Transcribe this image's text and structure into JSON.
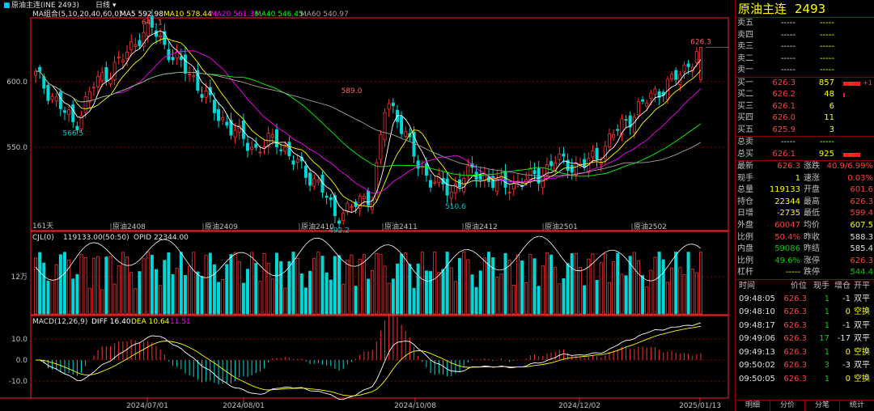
{
  "header": {
    "title_bullet": "■",
    "instrument": "原油主连(INE 2493)",
    "period": "日线",
    "period_arrow": "▾"
  },
  "ma_legend": {
    "label": "MA组合(5,10,20,40,60,0)",
    "ma5": "MA5 592.98",
    "ma10": "MA10 578.44",
    "ma20": "MA20 561.38",
    "ma40": "MA40 546.45",
    "ma60": "MA60 540.97"
  },
  "colors": {
    "up": "#ff3030",
    "down": "#00d8d8",
    "ma5": "#ffffff",
    "ma10": "#ffff00",
    "ma20": "#ff00ff",
    "ma40": "#00ff00",
    "ma60": "#a0a0a0",
    "grid": "#8b0000",
    "axis": "#ff2020"
  },
  "price_axis": {
    "labels": [
      "600.0",
      "550.0"
    ],
    "values": [
      600,
      550
    ]
  },
  "price_annotations": [
    "641.1",
    "589.0",
    "566.5",
    "510.6",
    "492.2",
    "626.3"
  ],
  "bar_count_label": "161天",
  "contract_markers": [
    "原油2408",
    "原油2409",
    "原油2410",
    "原油2411",
    "原油2412",
    "原油2501",
    "原油2502"
  ],
  "cjl": {
    "label": "CJL(0)",
    "values": "119133.00(50:50)",
    "opid": "OPID 22344.00",
    "axis_label": "12万"
  },
  "macd": {
    "label": "MACD(12,26,9)",
    "diff": "DIFF 16.40",
    "dea": "DEA 10.64",
    "macd": "11.51",
    "axis_labels": [
      "10.0",
      "0.0",
      "-10.0"
    ],
    "axis_values": [
      10,
      0,
      -10
    ]
  },
  "date_axis": [
    "2024/07/01",
    "2024/08/01",
    "2024/10/08",
    "2024/12/02",
    "2025/01/13"
  ],
  "panel": {
    "title_name": "原油主连",
    "title_code": "2493",
    "asks": [
      {
        "label": "卖五",
        "price": "-----",
        "vol": "-----"
      },
      {
        "label": "卖四",
        "price": "-----",
        "vol": "-----"
      },
      {
        "label": "卖三",
        "price": "-----",
        "vol": "-----"
      },
      {
        "label": "卖二",
        "price": "-----",
        "vol": "-----"
      },
      {
        "label": "卖一",
        "price": "-----",
        "vol": "-----"
      }
    ],
    "bids": [
      {
        "label": "买一",
        "price": "626.3",
        "vol": "857",
        "bar": 0.75,
        "delta": "+1"
      },
      {
        "label": "买二",
        "price": "626.2",
        "vol": "48",
        "bar": 0.05,
        "delta": ""
      },
      {
        "label": "买三",
        "price": "626.1",
        "vol": "6",
        "bar": 0,
        "delta": ""
      },
      {
        "label": "买四",
        "price": "626.0",
        "vol": "11",
        "bar": 0,
        "delta": ""
      },
      {
        "label": "买五",
        "price": "625.9",
        "vol": "3",
        "bar": 0,
        "delta": ""
      }
    ],
    "total_ask": {
      "label": "总卖",
      "price": "-----",
      "vol": "-----"
    },
    "total_bid": {
      "label": "总买",
      "price": "626.1",
      "vol": "925",
      "bar": 0.75
    },
    "quote": [
      {
        "l1": "最新",
        "v1": "626.3",
        "c1": "red",
        "l2": "涨跌",
        "v2": "40.9/6.99%",
        "c2": "red"
      },
      {
        "l1": "现手",
        "v1": "1",
        "c1": "yel",
        "l2": "速涨",
        "v2": "0.03%",
        "c2": "red"
      },
      {
        "l1": "总量",
        "v1": "119133",
        "c1": "yel",
        "l2": "开盘",
        "v2": "601.6",
        "c2": "red"
      },
      {
        "l1": "持仓",
        "v1": "22344",
        "c1": "yel",
        "l2": "最高",
        "v2": "626.3",
        "c2": "red"
      },
      {
        "l1": "日增",
        "v1": "-2735",
        "c1": "yel",
        "l2": "最低",
        "v2": "599.4",
        "c2": "red"
      },
      {
        "l1": "外盘",
        "v1": "60047",
        "c1": "red",
        "l2": "均价",
        "v2": "607.5",
        "c2": "yel"
      },
      {
        "l1": "比例",
        "v1": "50.4%",
        "c1": "red",
        "l2": "昨收",
        "v2": "588.3",
        "c2": "wht"
      },
      {
        "l1": "内盘",
        "v1": "59086",
        "c1": "grn",
        "l2": "昨结",
        "v2": "585.4",
        "c2": "wht"
      },
      {
        "l1": "比例",
        "v1": "49.6%",
        "c1": "grn",
        "l2": "涨停",
        "v2": "626.3",
        "c2": "red"
      },
      {
        "l1": "杠杆",
        "v1": "-----",
        "c1": "yel",
        "l2": "跌停",
        "v2": "544.4",
        "c2": "grn"
      }
    ],
    "tick_headers": [
      "时间",
      "价位",
      "现手",
      "增仓",
      "开平"
    ],
    "ticks": [
      {
        "time": "09:48:05",
        "price": "626.3",
        "qty": "1",
        "oi": "-1",
        "type": "双平"
      },
      {
        "time": "09:48:10",
        "price": "626.3",
        "qty": "1",
        "oi": "0",
        "type": "空换"
      },
      {
        "time": "09:48:17",
        "price": "626.3",
        "qty": "1",
        "oi": "-1",
        "type": "双平"
      },
      {
        "time": "09:49:06",
        "price": "626.3",
        "qty": "17",
        "oi": "-17",
        "type": "双平"
      },
      {
        "time": "09:49:13",
        "price": "626.3",
        "qty": "1",
        "oi": "0",
        "type": "空换"
      },
      {
        "time": "09:50:02",
        "price": "626.3",
        "qty": "3",
        "oi": "-3",
        "type": "双平"
      },
      {
        "time": "09:50:05",
        "price": "626.3",
        "qty": "1",
        "oi": "0",
        "type": "空换"
      }
    ],
    "tabs": [
      "明细",
      "分价",
      "分笔",
      "统计"
    ]
  }
}
